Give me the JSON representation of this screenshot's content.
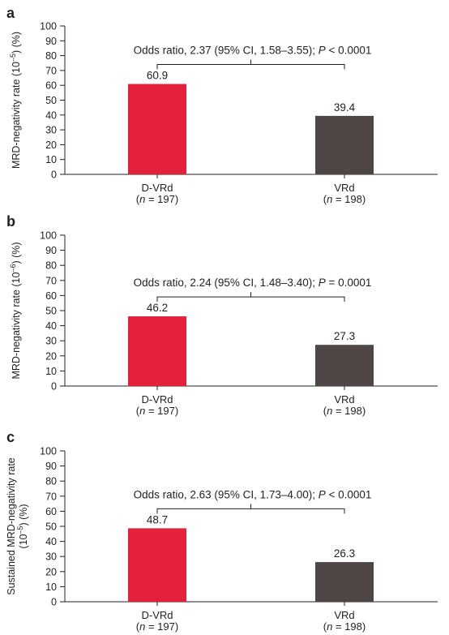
{
  "figure": {
    "colors": {
      "dvrd": "#e3213b",
      "vrd": "#4d4645",
      "axis": "#231f20"
    }
  },
  "chart_data": [
    {
      "type": "bar",
      "panel": "a",
      "ylabel": "MRD-negativity rate (10",
      "ylabel_sup": "–5",
      "ylabel_tail": ") (%)",
      "ylim": [
        0,
        100
      ],
      "yticks": [
        "0",
        "10",
        "20",
        "30",
        "40",
        "50",
        "60",
        "70",
        "80",
        "90",
        "100"
      ],
      "categories": [
        "D-VRd",
        "VRd"
      ],
      "category_n": [
        "(n = 197)",
        "(n = 198)"
      ],
      "values": [
        60.9,
        39.4
      ],
      "value_labels": [
        "60.9",
        "39.4"
      ],
      "annotation": "Odds ratio, 2.37 (95% CI, 1.58–3.55); P < 0.0001"
    },
    {
      "type": "bar",
      "panel": "b",
      "ylabel": "MRD-negativity rate (10",
      "ylabel_sup": "–6",
      "ylabel_tail": ") (%)",
      "ylim": [
        0,
        100
      ],
      "yticks": [
        "0",
        "10",
        "20",
        "30",
        "40",
        "50",
        "60",
        "70",
        "80",
        "90",
        "100"
      ],
      "categories": [
        "D-VRd",
        "VRd"
      ],
      "category_n": [
        "(n = 197)",
        "(n = 198)"
      ],
      "values": [
        46.2,
        27.3
      ],
      "value_labels": [
        "46.2",
        "27.3"
      ],
      "annotation": "Odds ratio, 2.24 (95% CI, 1.48–3.40); P = 0.0001"
    },
    {
      "type": "bar",
      "panel": "c",
      "ylabel": "Sustained MRD-negativity rate",
      "ylabel2": "(10",
      "ylabel2_sup": "–5",
      "ylabel2_tail": ") (%)",
      "ylim": [
        0,
        100
      ],
      "yticks": [
        "0",
        "10",
        "20",
        "30",
        "40",
        "50",
        "60",
        "70",
        "80",
        "90",
        "100"
      ],
      "categories": [
        "D-VRd",
        "VRd"
      ],
      "category_n": [
        "(n = 197)",
        "(n = 198)"
      ],
      "values": [
        48.7,
        26.3
      ],
      "value_labels": [
        "48.7",
        "26.3"
      ],
      "annotation": "Odds ratio, 2.63 (95% CI, 1.73–4.00); P < 0.0001"
    }
  ]
}
